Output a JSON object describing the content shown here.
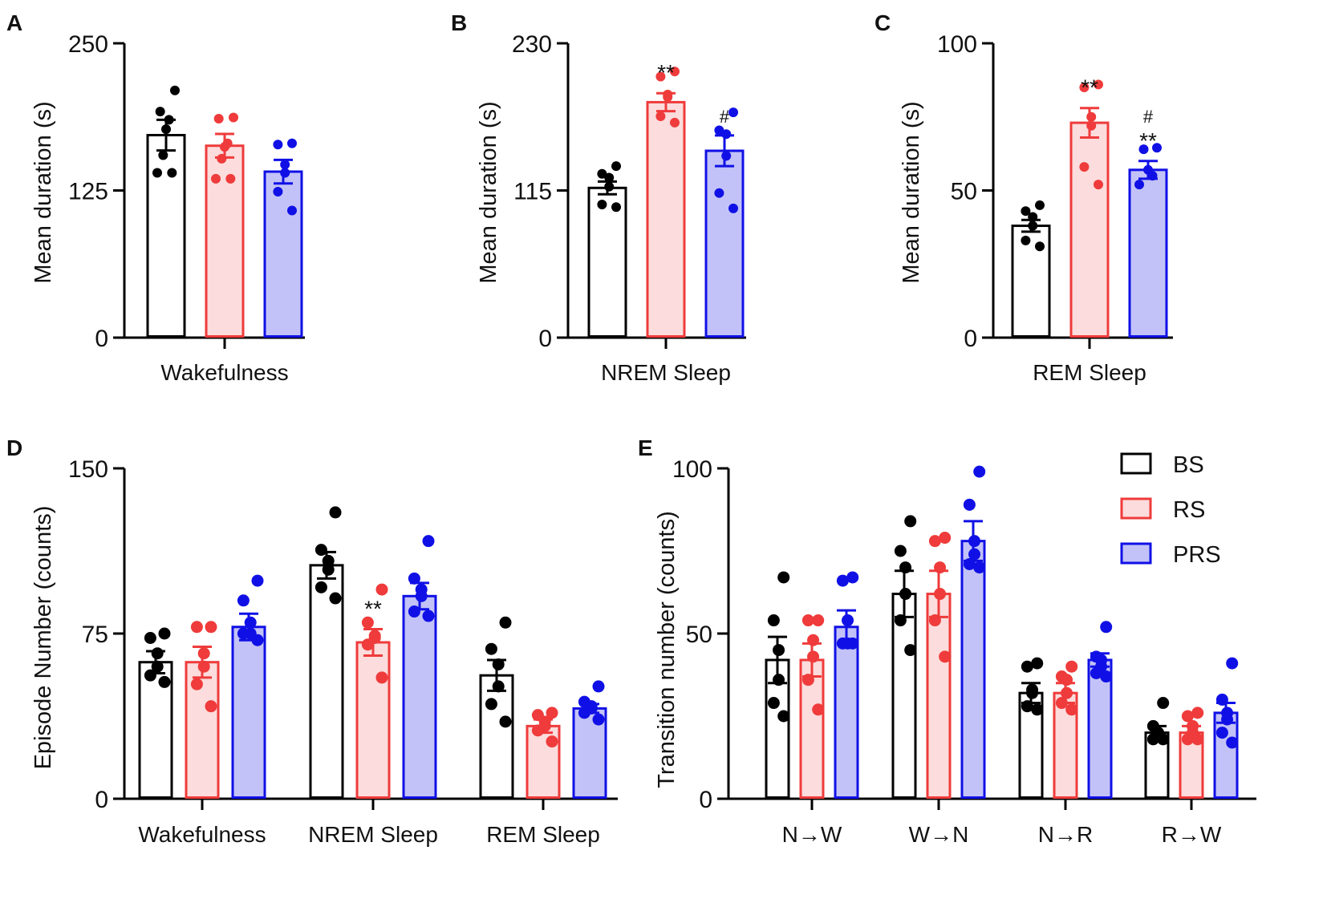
{
  "colors": {
    "BS": {
      "stroke": "#000000",
      "fill": "#ffffff",
      "dot": "#000000"
    },
    "RS": {
      "stroke": "#ef3b3b",
      "fill": "#fcdcdc",
      "dot": "#ef3b3b"
    },
    "PRS": {
      "stroke": "#1010e6",
      "fill": "#c2c2f8",
      "dot": "#1010e6"
    }
  },
  "legend": {
    "entries": [
      "BS",
      "RS",
      "PRS"
    ],
    "placement": "top-right of panel E"
  },
  "chart_data": [
    {
      "panel": "A",
      "type": "bar",
      "ylabel": "Mean duration (s)",
      "ylim": [
        0,
        250
      ],
      "yticks": [
        "0",
        "125",
        "250"
      ],
      "groups": [
        "Wakefulness"
      ],
      "series_order": [
        "BS",
        "RS",
        "PRS"
      ],
      "bars": [
        [
          {
            "series": "BS",
            "mean": 172,
            "sem": 13,
            "points": [
              210,
              192,
              185,
              177,
              155,
              140,
              140
            ],
            "sig": ""
          },
          {
            "series": "RS",
            "mean": 163,
            "sem": 10,
            "points": [
              187,
              186,
              165,
              162,
              152,
              135,
              135
            ],
            "sig": ""
          },
          {
            "series": "PRS",
            "mean": 141,
            "sem": 10,
            "points": [
              165,
              164,
              147,
              140,
              124,
              108
            ],
            "sig": ""
          }
        ]
      ]
    },
    {
      "panel": "B",
      "type": "bar",
      "ylabel": "Mean duration (s)",
      "ylim": [
        0,
        230
      ],
      "yticks": [
        "0",
        "115",
        "230"
      ],
      "groups": [
        "NREM Sleep"
      ],
      "series_order": [
        "BS",
        "RS",
        "PRS"
      ],
      "bars": [
        [
          {
            "series": "BS",
            "mean": 117,
            "sem": 5,
            "points": [
              134,
              128,
              125,
              118,
              104,
              102
            ],
            "sig": ""
          },
          {
            "series": "RS",
            "mean": 184,
            "sem": 7,
            "points": [
              208,
              204,
              190,
              188,
              173,
              168
            ],
            "sig": "**"
          },
          {
            "series": "PRS",
            "mean": 146,
            "sem": 12,
            "points": [
              176,
              162,
              159,
              142,
              113,
              101
            ],
            "sig": "#"
          }
        ]
      ]
    },
    {
      "panel": "C",
      "type": "bar",
      "ylabel": "Mean duration (s)",
      "ylim": [
        0,
        100
      ],
      "yticks": [
        "0",
        "50",
        "100"
      ],
      "groups": [
        "REM Sleep"
      ],
      "series_order": [
        "BS",
        "RS",
        "PRS"
      ],
      "bars": [
        [
          {
            "series": "BS",
            "mean": 38,
            "sem": 2,
            "points": [
              45,
              43,
              41,
              38,
              33,
              31
            ],
            "sig": ""
          },
          {
            "series": "RS",
            "mean": 73,
            "sem": 5,
            "points": [
              86,
              85,
              75,
              72,
              58,
              52
            ],
            "sig": "**"
          },
          {
            "series": "PRS",
            "mean": 57,
            "sem": 3,
            "points": [
              64.5,
              64,
              57,
              55,
              52
            ],
            "sig": "**",
            "sig2": "#"
          }
        ]
      ]
    },
    {
      "panel": "D",
      "type": "bar",
      "ylabel": "Episode Number (counts)",
      "ylim": [
        0,
        150
      ],
      "yticks": [
        "0",
        "75",
        "150"
      ],
      "groups": [
        "Wakefulness",
        "NREM Sleep",
        "REM Sleep"
      ],
      "series_order": [
        "BS",
        "RS",
        "PRS"
      ],
      "bars": [
        [
          {
            "series": "BS",
            "mean": 62,
            "sem": 5,
            "points": [
              75,
              73,
              66,
              60,
              56,
              53
            ],
            "sig": ""
          },
          {
            "series": "RS",
            "mean": 62,
            "sem": 7,
            "points": [
              78,
              78,
              66,
              60,
              52,
              42
            ],
            "sig": ""
          },
          {
            "series": "PRS",
            "mean": 78,
            "sem": 6,
            "points": [
              99,
              90,
              80,
              75,
              75,
              72
            ],
            "sig": ""
          }
        ],
        [
          {
            "series": "BS",
            "mean": 106,
            "sem": 6,
            "points": [
              130,
              113,
              108,
              104,
              96,
              91
            ],
            "sig": ""
          },
          {
            "series": "RS",
            "mean": 71,
            "sem": 6,
            "points": [
              95,
              80,
              74,
              73,
              70,
              55
            ],
            "sig": "**"
          },
          {
            "series": "PRS",
            "mean": 92,
            "sem": 6,
            "points": [
              117,
              100,
              95,
              92,
              85,
              83
            ],
            "sig": ""
          }
        ],
        [
          {
            "series": "BS",
            "mean": 56,
            "sem": 7,
            "points": [
              80,
              68,
              61,
              51,
              43,
              35
            ],
            "sig": ""
          },
          {
            "series": "RS",
            "mean": 33,
            "sem": 3,
            "points": [
              39,
              38,
              35,
              33,
              31,
              26
            ],
            "sig": ""
          },
          {
            "series": "PRS",
            "mean": 41,
            "sem": 2,
            "points": [
              51,
              44,
              42,
              41,
              39,
              36
            ],
            "sig": ""
          }
        ]
      ]
    },
    {
      "panel": "E",
      "type": "bar",
      "ylabel": "Transition number (counts)",
      "ylim": [
        0,
        100
      ],
      "yticks": [
        "0",
        "50",
        "100"
      ],
      "groups": [
        "N→W",
        "W→N",
        "N→R",
        "R→W"
      ],
      "series_order": [
        "BS",
        "RS",
        "PRS"
      ],
      "bars": [
        [
          {
            "series": "BS",
            "mean": 42,
            "sem": 7,
            "points": [
              67,
              54,
              45,
              36,
              29,
              25
            ],
            "sig": ""
          },
          {
            "series": "RS",
            "mean": 42,
            "sem": 5,
            "points": [
              54,
              54,
              48,
              43,
              36,
              27
            ],
            "sig": ""
          },
          {
            "series": "PRS",
            "mean": 52,
            "sem": 5,
            "points": [
              67,
              66,
              54,
              47,
              47,
              47
            ],
            "sig": ""
          }
        ],
        [
          {
            "series": "BS",
            "mean": 62,
            "sem": 7,
            "points": [
              84,
              75,
              70,
              62,
              54,
              45
            ],
            "sig": ""
          },
          {
            "series": "RS",
            "mean": 62,
            "sem": 7,
            "points": [
              79,
              78,
              70,
              62,
              54,
              43
            ],
            "sig": ""
          },
          {
            "series": "PRS",
            "mean": 78,
            "sem": 6,
            "points": [
              99,
              89,
              78,
              74,
              71,
              70
            ],
            "sig": ""
          }
        ],
        [
          {
            "series": "BS",
            "mean": 32,
            "sem": 3,
            "points": [
              41,
              40,
              33,
              32,
              28,
              27
            ],
            "sig": ""
          },
          {
            "series": "RS",
            "mean": 32,
            "sem": 3,
            "points": [
              40,
              37,
              36,
              32,
              29,
              27
            ],
            "sig": ""
          },
          {
            "series": "PRS",
            "mean": 42,
            "sem": 2,
            "points": [
              52,
              43,
              42,
              40,
              38,
              37
            ],
            "sig": ""
          }
        ],
        [
          {
            "series": "BS",
            "mean": 20,
            "sem": 2,
            "points": [
              29,
              22,
              20,
              19,
              18,
              18
            ],
            "sig": ""
          },
          {
            "series": "RS",
            "mean": 20,
            "sem": 2,
            "points": [
              26,
              25,
              22,
              20,
              18,
              18
            ],
            "sig": ""
          },
          {
            "series": "PRS",
            "mean": 26,
            "sem": 3,
            "points": [
              41,
              30,
              26,
              24,
              20,
              17
            ],
            "sig": ""
          }
        ]
      ]
    }
  ]
}
